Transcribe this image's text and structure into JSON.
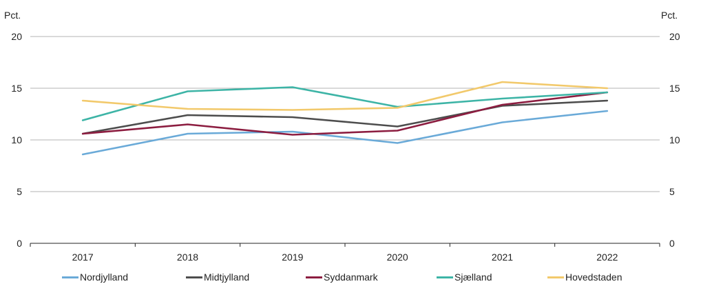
{
  "chart_data": {
    "type": "line",
    "categories": [
      "2017",
      "2018",
      "2019",
      "2020",
      "2021",
      "2022"
    ],
    "unit_left": "Pct.",
    "unit_right": "Pct.",
    "ylim": [
      0,
      20
    ],
    "yticks": [
      "0",
      "5",
      "10",
      "15",
      "20"
    ],
    "grid": true,
    "legend_position": "bottom",
    "series": [
      {
        "name": "Nordjylland",
        "color": "#6aaad8",
        "values": [
          8.6,
          10.6,
          10.8,
          9.7,
          11.7,
          12.8
        ]
      },
      {
        "name": "Midtjylland",
        "color": "#4d4d4d",
        "values": [
          10.6,
          12.4,
          12.2,
          11.3,
          13.3,
          13.8
        ]
      },
      {
        "name": "Syddanmark",
        "color": "#8c1d40",
        "values": [
          10.6,
          11.5,
          10.5,
          10.9,
          13.4,
          14.6
        ]
      },
      {
        "name": "Sjælland",
        "color": "#3db4a6",
        "values": [
          11.9,
          14.7,
          15.1,
          13.2,
          14.0,
          14.6
        ]
      },
      {
        "name": "Hovedstaden",
        "color": "#f2c96b",
        "values": [
          13.8,
          13.0,
          12.9,
          13.1,
          15.6,
          15.0
        ]
      }
    ]
  }
}
